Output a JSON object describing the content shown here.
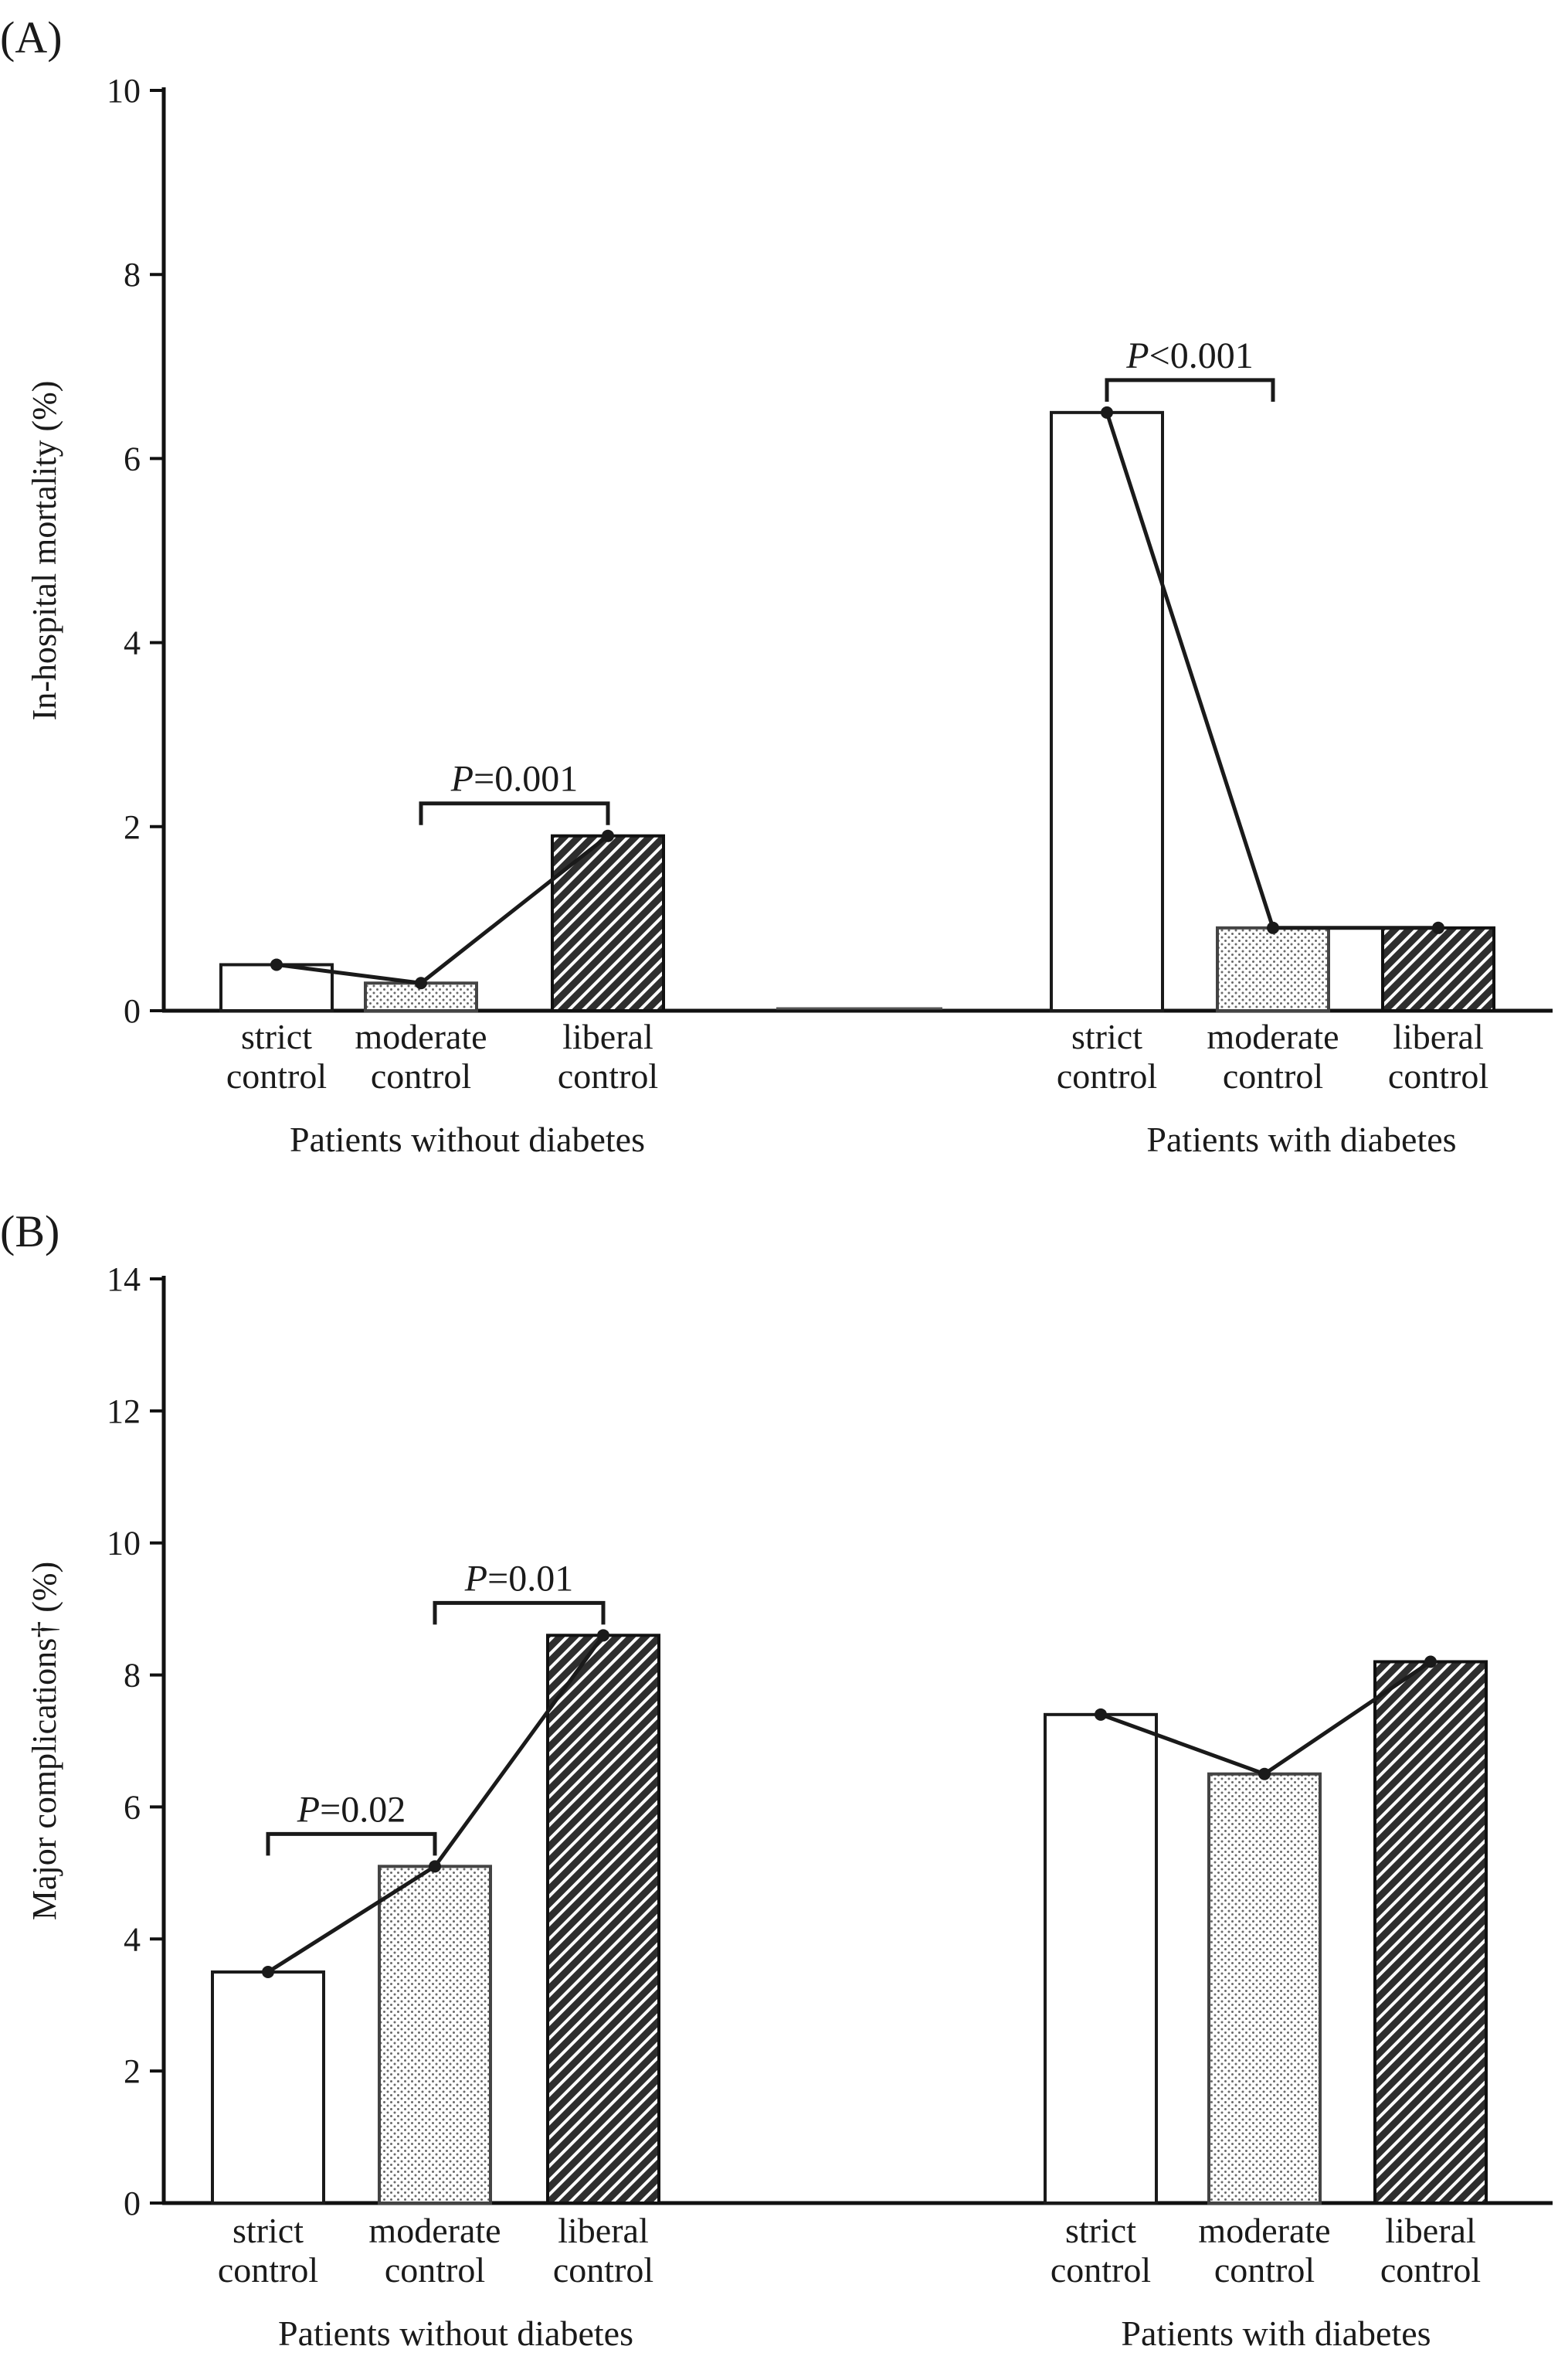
{
  "chart_data": [
    {
      "type": "bar",
      "panel_label": "(A)",
      "ylabel": "In-hospital mortality (%)",
      "ylim": [
        0,
        10
      ],
      "yticks": [
        0,
        2,
        4,
        6,
        8,
        10
      ],
      "grid": false,
      "groups": [
        {
          "name": "Patients without diabetes",
          "categories": [
            {
              "line1": "strict",
              "line2": "control",
              "value": 0.5,
              "pattern": "white"
            },
            {
              "line1": "moderate",
              "line2": "control",
              "value": 0.3,
              "pattern": "dots"
            },
            {
              "line1": "liberal",
              "line2": "control",
              "value": 1.9,
              "pattern": "hatch"
            }
          ]
        },
        {
          "name": "Patients with diabetes",
          "categories": [
            {
              "line1": "strict",
              "line2": "control",
              "value": 6.5,
              "pattern": "white"
            },
            {
              "line1": "moderate",
              "line2": "control",
              "value": 0.9,
              "pattern": "dots"
            },
            {
              "line1": "liberal",
              "line2": "control",
              "value": 0.9,
              "pattern": "hatch"
            }
          ]
        }
      ],
      "comparisons": [
        {
          "group": 0,
          "from": 1,
          "to": 2,
          "prefix": "P",
          "text": "=0.001"
        },
        {
          "group": 1,
          "from": 0,
          "to": 1,
          "prefix": "P",
          "text": "<0.001"
        }
      ]
    },
    {
      "type": "bar",
      "panel_label": "(B)",
      "ylabel": "Major complications† (%)",
      "ylim": [
        0,
        14
      ],
      "yticks": [
        0,
        2,
        4,
        6,
        8,
        10,
        12,
        14
      ],
      "grid": false,
      "groups": [
        {
          "name": "Patients without diabetes",
          "categories": [
            {
              "line1": "strict",
              "line2": "control",
              "value": 3.5,
              "pattern": "white"
            },
            {
              "line1": "moderate",
              "line2": "control",
              "value": 5.1,
              "pattern": "dots"
            },
            {
              "line1": "liberal",
              "line2": "control",
              "value": 8.6,
              "pattern": "hatch"
            }
          ]
        },
        {
          "name": "Patients with diabetes",
          "categories": [
            {
              "line1": "strict",
              "line2": "control",
              "value": 7.4,
              "pattern": "white"
            },
            {
              "line1": "moderate",
              "line2": "control",
              "value": 6.5,
              "pattern": "dots"
            },
            {
              "line1": "liberal",
              "line2": "control",
              "value": 8.2,
              "pattern": "hatch"
            }
          ]
        }
      ],
      "comparisons": [
        {
          "group": 0,
          "from": 0,
          "to": 1,
          "prefix": "P",
          "text": "=0.02"
        },
        {
          "group": 0,
          "from": 1,
          "to": 2,
          "prefix": "P",
          "text": "=0.01"
        }
      ]
    }
  ]
}
